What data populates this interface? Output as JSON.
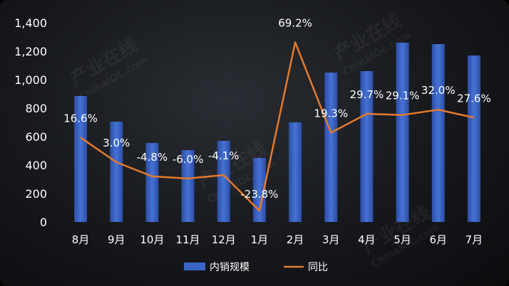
{
  "chart_data": {
    "type": "bar",
    "title": "",
    "xlabel": "",
    "ylabel": "",
    "categories": [
      "8月",
      "9月",
      "10月",
      "11月",
      "12月",
      "1月",
      "2月",
      "3月",
      "4月",
      "5月",
      "6月",
      "7月"
    ],
    "ylim": [
      0,
      1400
    ],
    "y_ticks": [
      "0",
      "200",
      "400",
      "600",
      "800",
      "1,000",
      "1,200",
      "1,400"
    ],
    "grid": false,
    "legend_position": "bottom",
    "series": [
      {
        "name": "内销规模",
        "type": "bar",
        "color": "#3a63c4",
        "values": [
          885,
          705,
          555,
          505,
          570,
          450,
          700,
          1050,
          1060,
          1260,
          1250,
          1170
        ]
      },
      {
        "name": "同比",
        "type": "line",
        "color": "#e57a2c",
        "values": [
          16.6,
          3.0,
          -4.8,
          -6.0,
          -4.1,
          -23.8,
          69.2,
          19.3,
          29.7,
          29.1,
          32.0,
          27.6
        ],
        "labels": [
          "16.6%",
          "3.0%",
          "-4.8%",
          "-6.0%",
          "-4.1%",
          "-23.8%",
          "69.2%",
          "19.3%",
          "29.7%",
          "29.1%",
          "32.0%",
          "27.6%"
        ],
        "secondary_ylim": [
          -30,
          80
        ]
      }
    ],
    "watermarks": [
      "产业在线",
      "ChinaIOL.com"
    ]
  }
}
